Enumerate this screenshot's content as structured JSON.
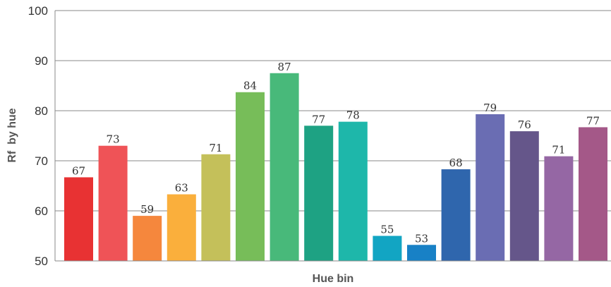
{
  "chart_data": {
    "type": "bar",
    "title": "",
    "xlabel": "Hue bin",
    "ylabel": "Rf  by hue",
    "ylim": [
      50,
      100
    ],
    "yticks": [
      50,
      60,
      70,
      80,
      90,
      100
    ],
    "grid": true,
    "legend": "none",
    "values": [
      67,
      73,
      59,
      63,
      71,
      84,
      87,
      77,
      78,
      55,
      53,
      68,
      79,
      76,
      71,
      77
    ],
    "value_labels": [
      "67",
      "73",
      "59",
      "63",
      "71",
      "84",
      "87",
      "77",
      "78",
      "55",
      "53",
      "68",
      "79",
      "76",
      "71",
      "77"
    ],
    "plotted_values": [
      66.7,
      73.0,
      59.0,
      63.3,
      71.3,
      83.7,
      87.5,
      77.0,
      77.8,
      55.0,
      53.2,
      68.3,
      79.3,
      75.9,
      70.9,
      76.7
    ],
    "colors": [
      "#e83233",
      "#ef5357",
      "#f5873d",
      "#faaf3c",
      "#c4c05a",
      "#77bd59",
      "#48b97a",
      "#1ea283",
      "#1eb7aa",
      "#12a5c3",
      "#1881c6",
      "#2f66ad",
      "#6a6db3",
      "#65568a",
      "#9567a4",
      "#a45888"
    ]
  }
}
